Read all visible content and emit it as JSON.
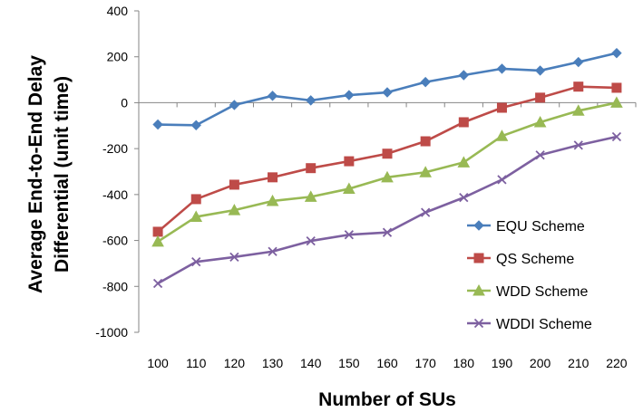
{
  "chart_data": {
    "type": "line",
    "title": "",
    "xlabel": "Number of SUs",
    "ylabel": [
      "Average End-to-End Delay",
      "Differential (unit time)"
    ],
    "x": [
      100,
      110,
      120,
      130,
      140,
      150,
      160,
      170,
      180,
      190,
      200,
      210,
      220
    ],
    "ylim": [
      -1000,
      400
    ],
    "yticks": [
      -1000,
      -800,
      -600,
      -400,
      -200,
      0,
      200,
      400
    ],
    "grid": false,
    "legend_position": "right",
    "series": [
      {
        "name": "EQU Scheme",
        "color": "#4a7ebb",
        "marker": "diamond",
        "values": [
          -95,
          -98,
          -10,
          30,
          10,
          33,
          45,
          90,
          120,
          148,
          140,
          177,
          216
        ]
      },
      {
        "name": "QS Scheme",
        "color": "#be4b48",
        "marker": "square",
        "values": [
          -562,
          -420,
          -357,
          -325,
          -285,
          -255,
          -222,
          -168,
          -85,
          -22,
          22,
          70,
          65
        ]
      },
      {
        "name": "WDD Scheme",
        "color": "#98b954",
        "marker": "triangle",
        "values": [
          -605,
          -497,
          -468,
          -428,
          -410,
          -375,
          -325,
          -303,
          -260,
          -145,
          -85,
          -35,
          0
        ]
      },
      {
        "name": "WDDI Scheme",
        "color": "#7d60a0",
        "marker": "x",
        "values": [
          -787,
          -693,
          -672,
          -648,
          -602,
          -575,
          -565,
          -478,
          -413,
          -335,
          -228,
          -185,
          -148
        ]
      }
    ]
  }
}
